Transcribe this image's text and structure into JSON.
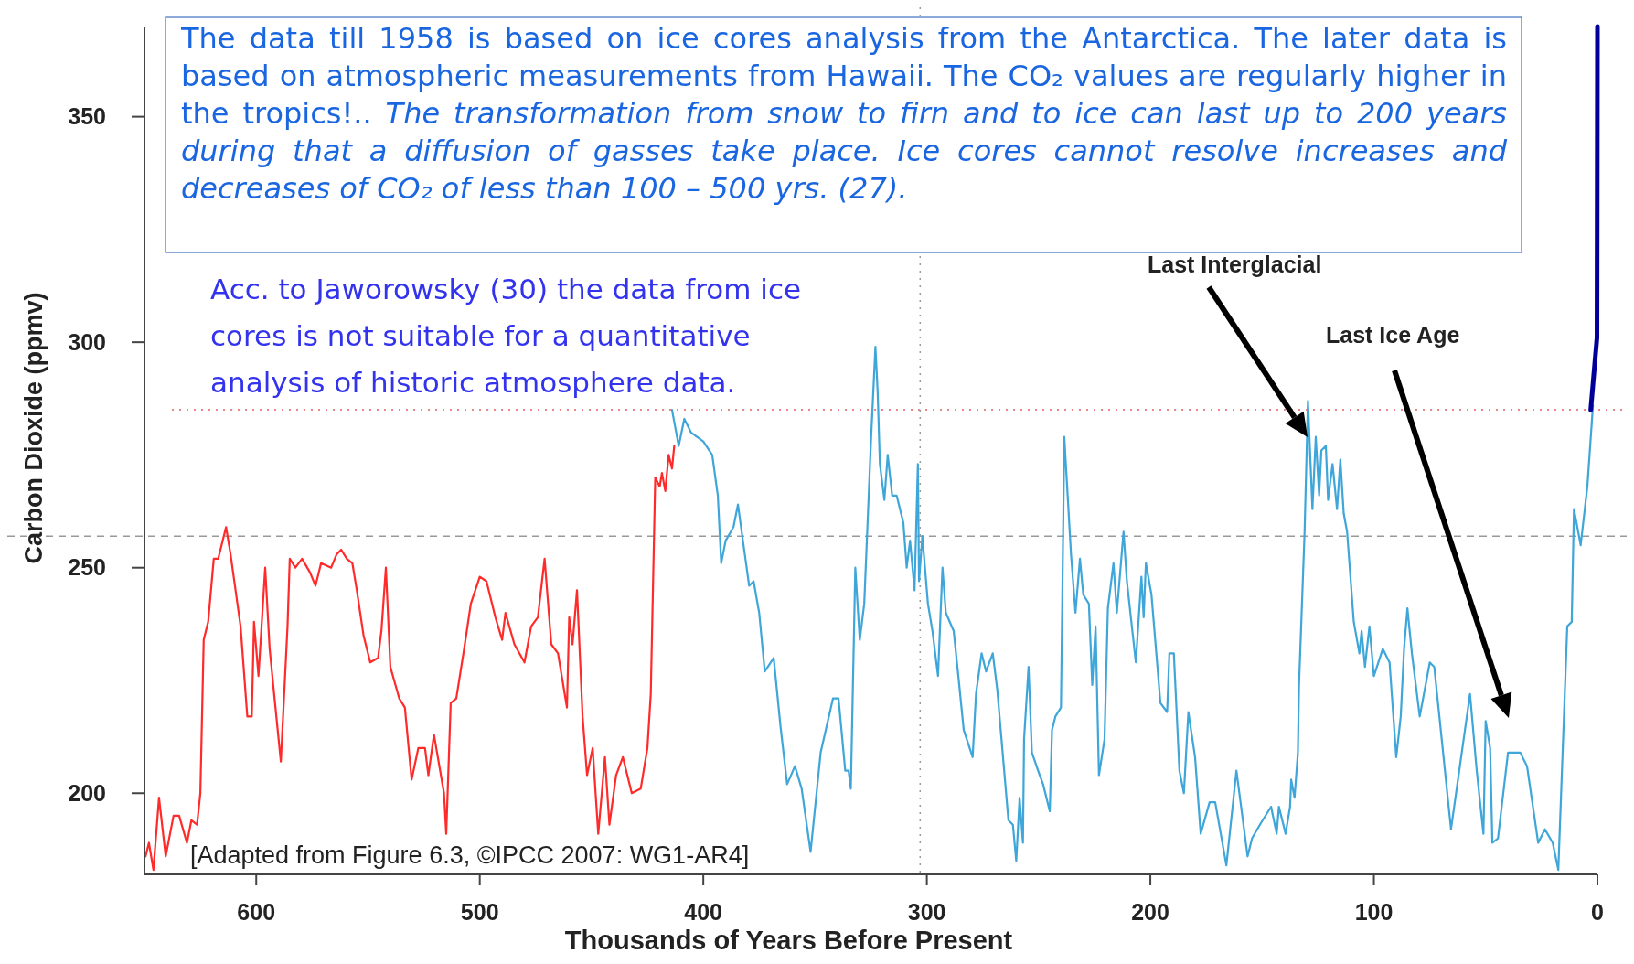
{
  "chart_data": {
    "type": "line",
    "xlabel": "Thousands of Years Before Present",
    "ylabel": "Carbon Dioxide (ppmv)",
    "xlim": [
      650,
      0
    ],
    "ylim": [
      182,
      370
    ],
    "xticks": [
      600,
      500,
      400,
      300,
      200,
      100,
      0
    ],
    "yticks": [
      200,
      250,
      300,
      350
    ],
    "line_style": "solid",
    "series": [
      {
        "color": "#ff2a2a",
        "x": [
          649.5,
          648,
          646,
          643.5,
          640.5,
          637,
          634.5,
          631,
          629,
          626.5,
          625,
          623.5,
          621.5,
          619,
          617,
          613.5,
          611.5,
          607,
          604,
          602,
          601,
          599,
          596,
          594,
          589,
          586,
          585,
          582.5,
          579.5,
          576,
          573.5,
          571,
          566.5,
          564,
          562,
          559.5,
          557,
          555,
          552,
          549,
          545.5,
          544,
          542,
          540,
          536,
          533.5,
          530.5,
          527.5,
          524.5,
          523,
          520.5,
          516,
          515,
          513,
          510.5,
          507,
          504,
          500,
          497,
          493,
          490,
          488.5,
          484.5,
          480,
          477,
          474,
          471,
          468,
          465,
          461,
          460,
          458.5,
          456.5,
          454,
          452,
          449.5,
          447,
          444,
          442,
          439,
          436,
          432,
          428,
          425,
          423.5,
          421.5,
          419.5,
          418.5,
          417,
          415.5,
          414,
          413
        ],
        "values": [
          186,
          189,
          183,
          199,
          186,
          195,
          195,
          189,
          194,
          193,
          200,
          234,
          238,
          252,
          252,
          259,
          253,
          237,
          217,
          217,
          238,
          226,
          250,
          232,
          207,
          237,
          252,
          250,
          252,
          249,
          246,
          251,
          250,
          253,
          254,
          252,
          251,
          245,
          235,
          229,
          230,
          236,
          250,
          228,
          221,
          219,
          203,
          210,
          210,
          204,
          213,
          200,
          191,
          220,
          221,
          232,
          242,
          248,
          247,
          239,
          234,
          240,
          233,
          229,
          237,
          239,
          252,
          233,
          231,
          219,
          239,
          233,
          245,
          217,
          204,
          210,
          191,
          208,
          193,
          204,
          208,
          200,
          201,
          210,
          222,
          270,
          268,
          271,
          267,
          275,
          272,
          277
        ]
      },
      {
        "color": "#3fa6d9",
        "x": [
          414,
          411,
          408.5,
          405.5,
          400,
          396,
          393.5,
          392,
          390,
          386.5,
          384.5,
          379.5,
          377.5,
          375,
          372.5,
          368.5,
          365.5,
          362.5,
          359,
          356,
          352,
          347.5,
          342,
          339.5,
          336.5,
          335,
          334,
          332,
          330,
          328,
          325,
          323,
          322,
          321,
          319,
          317.5,
          315.5,
          313.5,
          310.5,
          309,
          307.5,
          305.5,
          304,
          303.5,
          302,
          299.5,
          297.5,
          295,
          293,
          291.5,
          288,
          285.5,
          283.5,
          279.5,
          278,
          275.5,
          273.5,
          270.5,
          268.5,
          263.5,
          261.5,
          260,
          258.5,
          257,
          256.5,
          254.5,
          253,
          249.5,
          248,
          245,
          244,
          242.5,
          240,
          238.5,
          235.5,
          233.5,
          231.5,
          230,
          227.5,
          226,
          224.5,
          223,
          220.5,
          219,
          216.5,
          215,
          212,
          210.5,
          206.5,
          204,
          203,
          202,
          199.5,
          195.5,
          192.5,
          191.5,
          189.5,
          187,
          185,
          183,
          180,
          177.5,
          173.5,
          171,
          166,
          161.5,
          156.5,
          154.5,
          151,
          146,
          143.5,
          142.5,
          139.5,
          137.5,
          137,
          135.5,
          134,
          133.5,
          131,
          129.5,
          127.5,
          126,
          124.5,
          123.5,
          121.5,
          120.5,
          118.5,
          116.5,
          115,
          113.5,
          112,
          109,
          106.5,
          105.5,
          104,
          102,
          100,
          96,
          93,
          90,
          88,
          86.5,
          85,
          83,
          79.5,
          75,
          73,
          65.5,
          57,
          54,
          51,
          50,
          48,
          47,
          44.5,
          40,
          34.5,
          31.5,
          26.5,
          23.5,
          20,
          17.5,
          13.5,
          11.5,
          10.5,
          7.5,
          4.5,
          2
        ],
        "values": [
          285,
          277,
          283,
          280,
          278,
          275,
          266,
          251,
          256,
          259,
          264,
          246,
          247,
          240,
          227,
          230,
          215,
          202,
          206,
          201,
          187,
          209,
          221,
          221,
          205,
          205,
          201,
          250,
          234,
          242,
          278,
          299,
          289,
          273,
          265,
          275,
          266,
          266,
          260,
          250,
          256,
          245,
          273,
          247,
          257,
          242,
          236,
          226,
          250,
          240,
          236,
          224,
          214,
          208,
          222,
          231,
          227,
          231,
          223,
          194,
          193,
          185,
          199,
          189,
          212,
          228,
          209,
          204,
          202,
          196,
          214,
          217,
          219,
          279,
          253,
          240,
          252,
          244,
          242,
          224,
          237,
          204,
          212,
          241,
          251,
          240,
          258,
          247,
          229,
          248,
          239,
          251,
          244,
          220,
          218,
          231,
          231,
          205,
          200,
          218,
          208,
          191,
          198,
          198,
          184,
          205,
          186,
          190,
          193,
          197,
          191,
          197,
          191,
          197,
          203,
          199,
          209,
          224,
          258,
          287,
          263,
          279,
          266,
          276,
          277,
          265,
          273,
          263,
          274,
          262,
          258,
          238,
          231,
          236,
          228,
          237,
          226,
          232,
          229,
          208,
          217,
          232,
          241,
          231,
          217,
          229,
          228,
          192,
          222,
          205,
          191,
          216,
          210,
          189,
          190,
          209,
          209,
          206,
          189,
          192,
          189,
          183,
          237,
          238,
          263,
          255,
          268,
          286
        ]
      },
      {
        "color": "#000099",
        "x": [
          3,
          0.2,
          0
        ],
        "values": [
          285,
          301,
          370
        ]
      }
    ],
    "ref_lines": [
      {
        "axis": "y",
        "value": 285,
        "color": "#e06060",
        "line_style": "dotted"
      },
      {
        "axis": "y",
        "value": 257,
        "color": "#999999",
        "line_style": "dashed"
      },
      {
        "axis": "x",
        "value": 303,
        "color": "#999999",
        "line_style": "dotted"
      }
    ],
    "annotations": [
      "The data till 1958 is based on ice cores analysis from the Antarctica. The later data is based on atmospheric measurements from Hawaii. The CO₂ values are regularly higher in the tropics!..",
      "The transformation from snow to firn and to ice can last up to 200 years during that a diffusion of gasses take place. Ice cores cannot resolve increases and decreases of CO₂ of less than 100 – 500 yrs. (27).",
      "Acc. to Jaworowsky (30) the data from ice cores is not suitable for a quantitative analysis of historic atmosphere data.",
      "Last Interglacial",
      "Last Ice Age",
      "[Adapted from Figure 6.3, ©IPCC 2007: WG1-AR4]"
    ]
  }
}
